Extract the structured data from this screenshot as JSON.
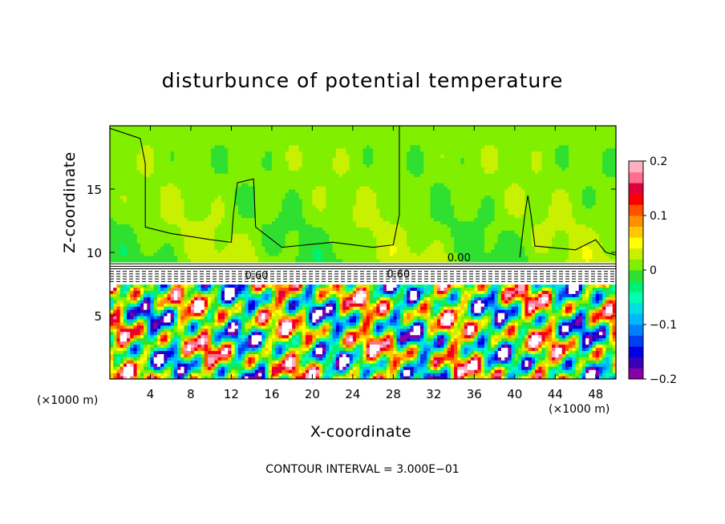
{
  "chart_data": {
    "type": "heatmap",
    "title": "disturbunce of potential temperature",
    "xlabel": "X-coordinate",
    "ylabel": "Z-coordinate",
    "x_unit_label": "(×1000 m)",
    "xlim": [
      0,
      50
    ],
    "ylim": [
      0,
      20
    ],
    "xticks": [
      4,
      8,
      12,
      16,
      20,
      24,
      28,
      32,
      36,
      40,
      44,
      48
    ],
    "yticks": [
      5,
      10,
      15
    ],
    "colorbar": {
      "min": -0.2,
      "max": 0.2,
      "ticks": [
        -0.2,
        -0.1,
        0,
        0.1,
        0.2
      ],
      "tick_labels": [
        "−0.2",
        "−0.1",
        "0",
        "0.1",
        "0.2"
      ],
      "colors": [
        "#8a00a8",
        "#3a00b8",
        "#0000e0",
        "#0040f0",
        "#0080ff",
        "#00b8ff",
        "#00e0e0",
        "#00ffb0",
        "#00f070",
        "#30e030",
        "#80f000",
        "#c8f000",
        "#ffff00",
        "#ffc800",
        "#ff9000",
        "#ff5000",
        "#ff0000",
        "#e00040",
        "#ff7090",
        "#ffb0c0"
      ]
    },
    "contour_interval_text": "CONTOUR INTERVAL = 3.000E−01",
    "contour_labels": [
      {
        "text": "0.00",
        "x": 34.5,
        "z": 9.3
      },
      {
        "text": "0.60",
        "x": 14.5,
        "z": 7.9
      },
      {
        "text": "0.60",
        "x": 28.5,
        "z": 8.0
      }
    ]
  }
}
